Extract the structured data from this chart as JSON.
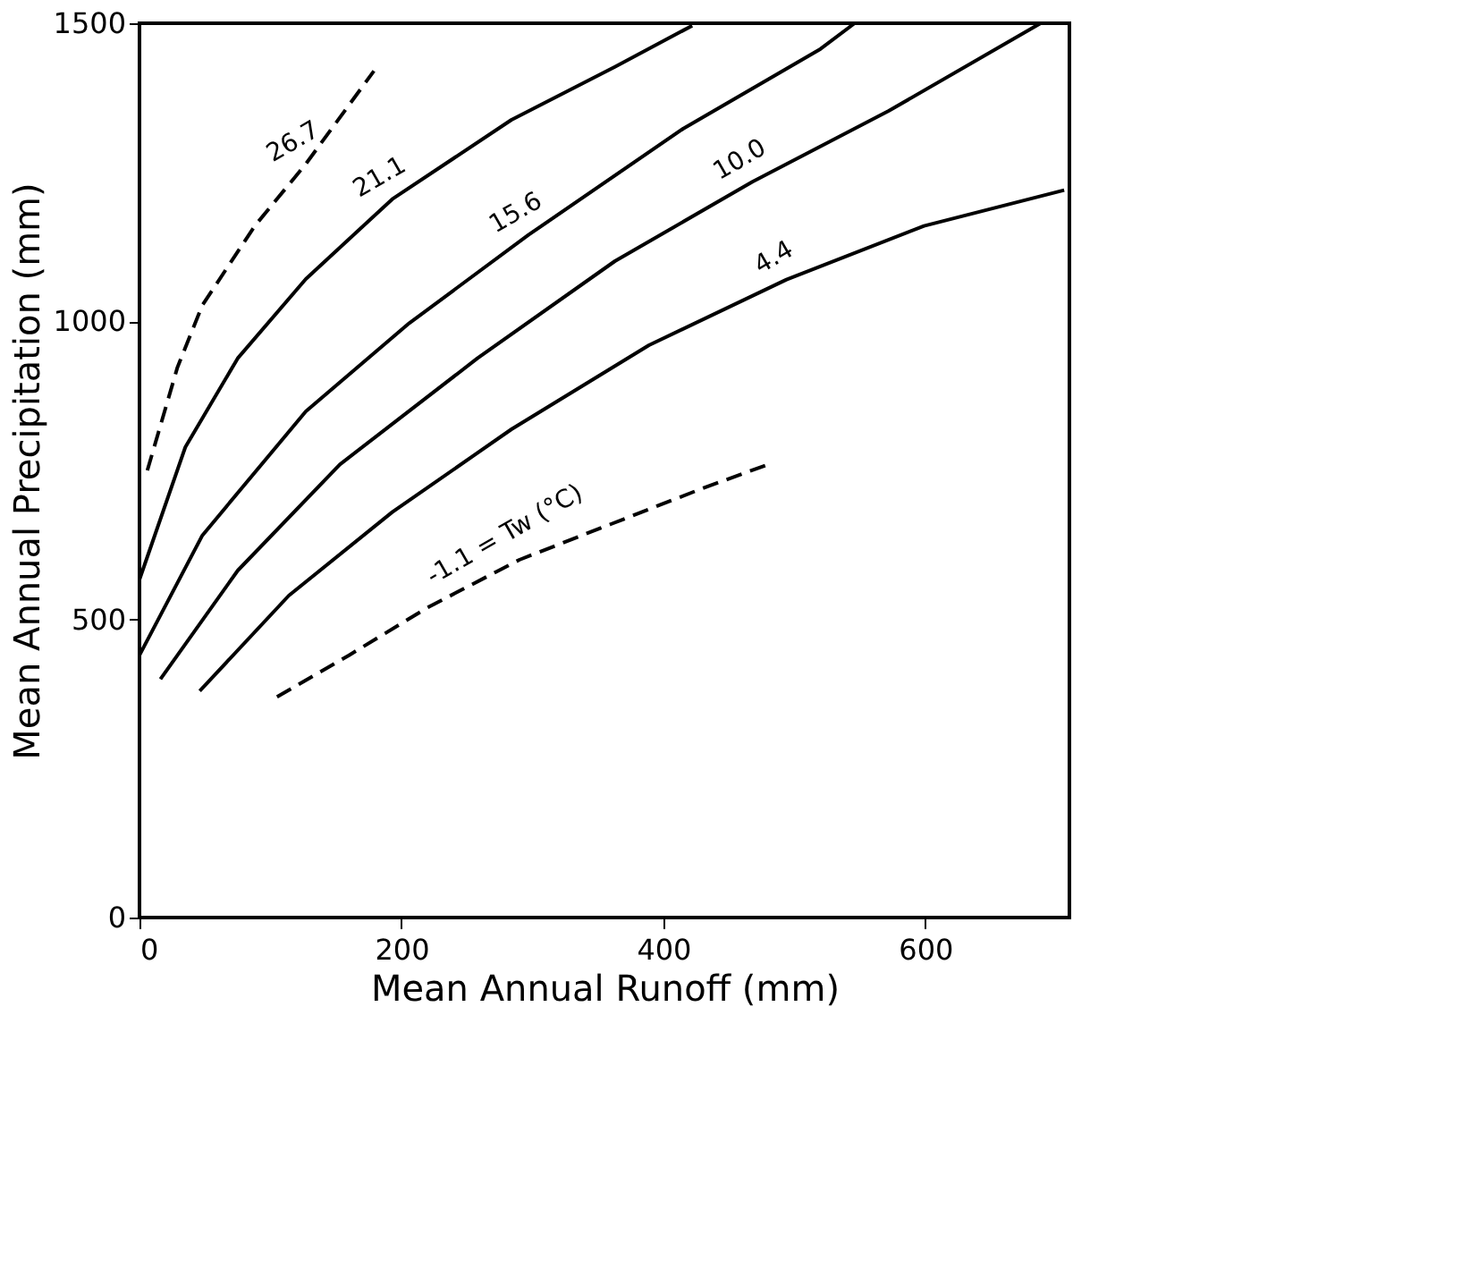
{
  "chart_data": {
    "type": "line",
    "xlabel": "Mean Annual Runoff  (mm)",
    "ylabel": "Mean Annual Precipitation  (mm)",
    "xlim": [
      0,
      710
    ],
    "ylim": [
      0,
      1500
    ],
    "xticks": [
      0,
      200,
      400,
      600
    ],
    "yticks": [
      0,
      500,
      1000,
      1500
    ],
    "grid": false,
    "marker": "none",
    "series": [
      {
        "name": "26.7",
        "color": "#000000",
        "line_style": "dashed",
        "x": [
          6,
          29,
          48,
          88,
          127,
          179
        ],
        "values": [
          750,
          923,
          1027,
          1160,
          1264,
          1420
        ]
      },
      {
        "name": "21.1",
        "color": "#000000",
        "line_style": "solid",
        "x": [
          0,
          35,
          75,
          127,
          193,
          284,
          363,
          422
        ],
        "values": [
          567,
          789,
          938,
          1071,
          1205,
          1338,
          1427,
          1496
        ]
      },
      {
        "name": "15.6",
        "color": "#000000",
        "line_style": "solid",
        "x": [
          0,
          48,
          127,
          206,
          297,
          415,
          520,
          546
        ],
        "values": [
          440,
          641,
          849,
          997,
          1145,
          1323,
          1457,
          1500
        ]
      },
      {
        "name": "10.0",
        "color": "#000000",
        "line_style": "solid",
        "x": [
          16,
          75,
          153,
          258,
          363,
          468,
          572,
          688
        ],
        "values": [
          400,
          582,
          760,
          938,
          1101,
          1234,
          1353,
          1500
        ]
      },
      {
        "name": "4.4",
        "color": "#000000",
        "line_style": "solid",
        "x": [
          46,
          114,
          193,
          284,
          389,
          494,
          599,
          706
        ],
        "values": [
          380,
          540,
          680,
          819,
          960,
          1070,
          1160,
          1220
        ]
      },
      {
        "name": "-1.1 = Tw (°C)",
        "color": "#000000",
        "line_style": "dashed",
        "x": [
          105,
          160,
          220,
          290,
          360,
          430,
          480
        ],
        "values": [
          370,
          440,
          520,
          600,
          660,
          720,
          760
        ]
      }
    ]
  }
}
